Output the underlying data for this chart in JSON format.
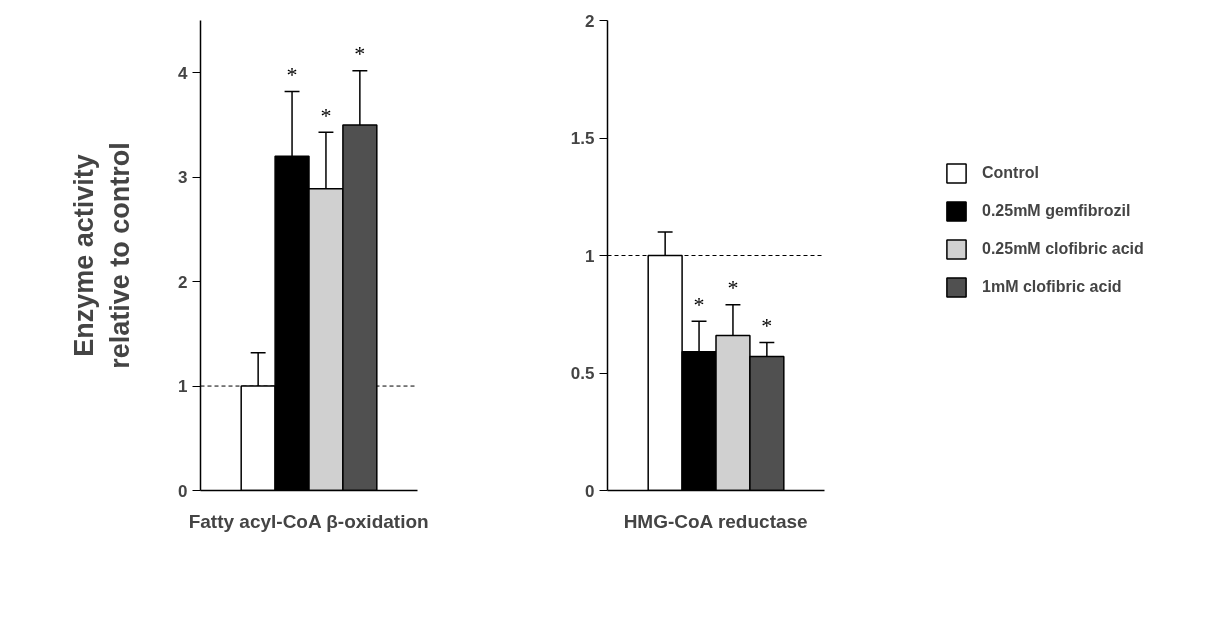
{
  "chart_data": [
    {
      "type": "bar",
      "xlabel": "Fatty acyl-CoA β-oxidation",
      "ylabel": "Enzyme activity\nrelative to control",
      "categories": [
        null
      ],
      "ylim": [
        0,
        4.5
      ],
      "yticks": [
        0,
        1,
        2,
        3,
        4
      ],
      "grid": false,
      "legend": false,
      "series": [
        {
          "color": "#ffffff",
          "values": [
            1.0
          ],
          "errors": [
            [
              1.0,
              1.32
            ]
          ]
        },
        {
          "color": "#000000",
          "values": [
            3.2
          ],
          "errors": [
            [
              3.2,
              3.82
            ]
          ]
        },
        {
          "color": "#d0d0d0",
          "values": [
            2.89
          ],
          "errors": [
            [
              2.89,
              3.43
            ]
          ]
        },
        {
          "color": "#505050",
          "values": [
            3.5
          ],
          "errors": [
            [
              3.5,
              4.02
            ]
          ]
        }
      ],
      "ref_lines": [
        {
          "axis": "y",
          "value": 1,
          "line_style": "dashed",
          "color": "#000000"
        }
      ],
      "annotations": [
        "*",
        "*",
        "*"
      ]
    },
    {
      "type": "bar",
      "xlabel": "HMG-CoA reductase",
      "categories": [
        null
      ],
      "ylim": [
        0,
        2
      ],
      "yticks": [
        0,
        0.5,
        1,
        1.5,
        2
      ],
      "grid": false,
      "legend": "right",
      "series": [
        {
          "name": "Control",
          "color": "#ffffff",
          "values": [
            1.0
          ],
          "errors": [
            [
              1.0,
              1.1
            ]
          ]
        },
        {
          "name": "0.25mM gemfibrozil",
          "color": "#000000",
          "values": [
            0.59
          ],
          "errors": [
            [
              0.59,
              0.72
            ]
          ]
        },
        {
          "name": "0.25mM clofibric acid",
          "color": "#d0d0d0",
          "values": [
            0.66
          ],
          "errors": [
            [
              0.66,
              0.79
            ]
          ]
        },
        {
          "name": "1mM clofibric acid",
          "color": "#505050",
          "values": [
            0.57
          ],
          "errors": [
            [
              0.57,
              0.63
            ]
          ]
        }
      ],
      "ref_lines": [
        {
          "axis": "y",
          "value": 1,
          "line_style": "dashed",
          "color": "#000000"
        }
      ],
      "annotations": [
        "*",
        "*",
        "*"
      ]
    }
  ]
}
